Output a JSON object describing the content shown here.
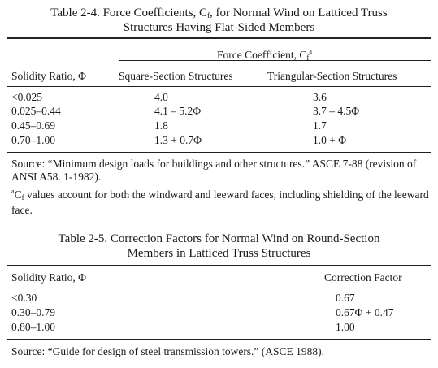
{
  "table1": {
    "title_line1": "Table 2-4.  Force Coefficients, C",
    "title_sub": "f",
    "title_line1_end": ", for Normal Wind on Latticed Truss",
    "title_line2": "Structures Having Flat-Sided Members",
    "group_header": "Force Coefficient, C",
    "group_header_sub": "f",
    "group_header_sup": "a",
    "col_headers": [
      "Solidity Ratio, Φ",
      "Square-Section Structures",
      "Triangular-Section Structures"
    ],
    "rows": [
      [
        "<0.025",
        "4.0",
        "3.6"
      ],
      [
        "0.025–0.44",
        "4.1 – 5.2Φ",
        "3.7 – 4.5Φ"
      ],
      [
        "0.45–0.69",
        "1.8",
        "1.7"
      ],
      [
        "0.70–1.00",
        "1.3 + 0.7Φ",
        "1.0 + Φ"
      ]
    ],
    "source": "Source:  “Minimum design loads for buildings and other structures.” ASCE 7-88 (revision of ANSI A58. 1-1982).",
    "footnote_mark": "a",
    "footnote_c": "C",
    "footnote_sub": "f",
    "footnote_text": " values account for both the windward and leeward faces, including shielding of the leeward face."
  },
  "table2": {
    "title_line1": "Table 2-5.  Correction Factors for Normal Wind on Round-Section",
    "title_line2": "Members in Latticed Truss Structures",
    "col_headers": [
      "Solidity Ratio, Φ",
      "Correction Factor"
    ],
    "rows": [
      [
        "<0.30",
        "0.67"
      ],
      [
        "0.30–0.79",
        "0.67Φ + 0.47"
      ],
      [
        "0.80–1.00",
        "1.00"
      ]
    ],
    "source": "Source:  “Guide for design of steel transmission towers.” (ASCE 1988)."
  }
}
